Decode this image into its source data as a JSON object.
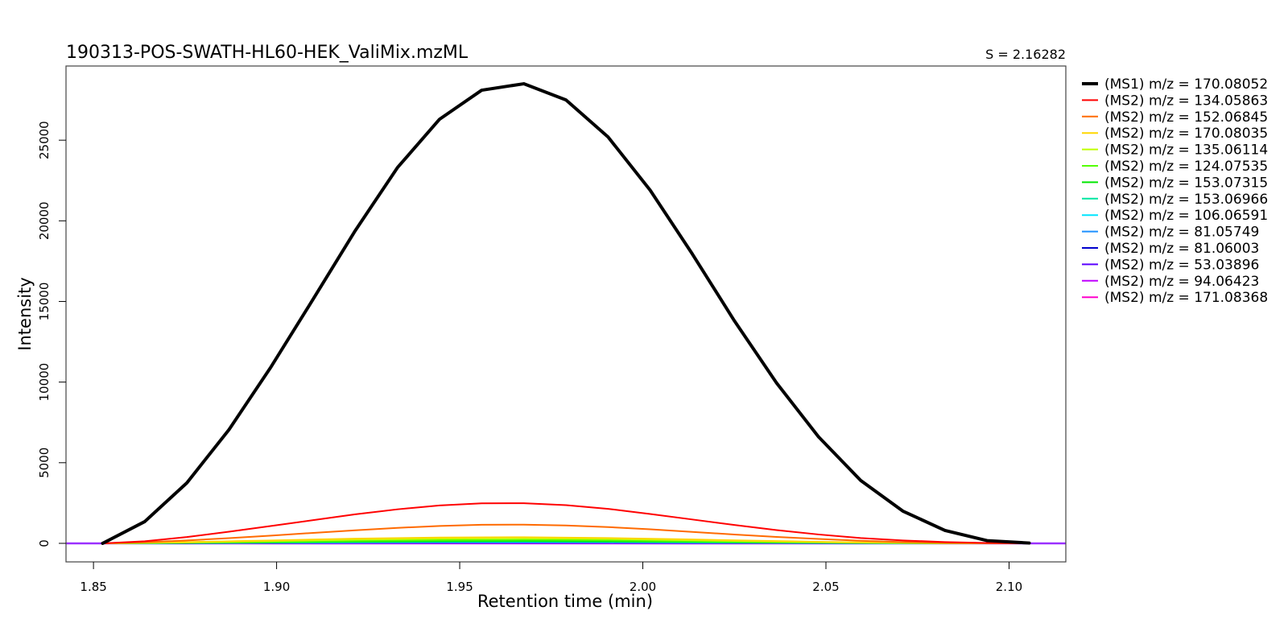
{
  "chart_data": {
    "type": "line",
    "title": "190313-POS-SWATH-HL60-HEK_ValiMix.mzML",
    "subtitle": "S = 2.16282",
    "xlabel": "Retention time (min)",
    "ylabel": "Intensity",
    "xlim": [
      1.8425,
      2.1155
    ],
    "ylim": [
      -1150,
      29600
    ],
    "x_ticks": [
      1.85,
      1.9,
      1.95,
      2.0,
      2.05,
      2.1
    ],
    "x_tick_labels": [
      "1.85",
      "1.90",
      "1.95",
      "2.00",
      "2.05",
      "2.10"
    ],
    "y_ticks": [
      0,
      5000,
      10000,
      15000,
      20000,
      25000
    ],
    "y_tick_labels": [
      "0",
      "5000",
      "10000",
      "15000",
      "20000",
      "25000"
    ],
    "grid": false,
    "legend_position": "right",
    "baseline": {
      "y": 0,
      "color": "#9b30ff"
    },
    "series": [
      {
        "name": "(MS1) m/z = 170.08052",
        "color": "#000000",
        "width": 4,
        "x": [
          1.8525,
          1.864,
          1.8755,
          1.887,
          1.8985,
          1.91,
          1.9215,
          1.933,
          1.9445,
          1.956,
          1.9675,
          1.979,
          1.9905,
          2.002,
          2.0135,
          2.025,
          2.0365,
          2.048,
          2.0595,
          2.071,
          2.0825,
          2.094,
          2.1055
        ],
        "y": [
          0,
          1350,
          3750,
          7050,
          10950,
          15150,
          19400,
          23300,
          26300,
          28100,
          28500,
          27500,
          25200,
          21900,
          17950,
          13800,
          9950,
          6600,
          3900,
          2000,
          800,
          170,
          20
        ]
      },
      {
        "name": "(MS2) m/z = 134.05863",
        "color": "#ff0000",
        "width": 2,
        "x": [
          1.8525,
          1.864,
          1.8755,
          1.887,
          1.8985,
          1.91,
          1.9215,
          1.933,
          1.9445,
          1.956,
          1.9675,
          1.979,
          1.9905,
          2.002,
          2.0135,
          2.025,
          2.0365,
          2.048,
          2.0595,
          2.071,
          2.0825,
          2.094,
          2.1055
        ],
        "y": [
          0,
          130,
          390,
          720,
          1080,
          1440,
          1800,
          2110,
          2350,
          2480,
          2490,
          2370,
          2140,
          1820,
          1480,
          1140,
          820,
          550,
          330,
          180,
          80,
          20,
          0
        ]
      },
      {
        "name": "(MS2) m/z = 152.06845",
        "color": "#ff6a00",
        "width": 2,
        "x": [
          1.8525,
          1.864,
          1.8755,
          1.887,
          1.8985,
          1.91,
          1.9215,
          1.933,
          1.9445,
          1.956,
          1.9675,
          1.979,
          1.9905,
          2.002,
          2.0135,
          2.025,
          2.0365,
          2.048,
          2.0595,
          2.071,
          2.0825,
          2.094,
          2.1055
        ],
        "y": [
          0,
          70,
          180,
          320,
          480,
          650,
          810,
          960,
          1080,
          1150,
          1160,
          1110,
          1010,
          870,
          710,
          550,
          400,
          270,
          160,
          80,
          30,
          10,
          0
        ]
      },
      {
        "name": "(MS2) m/z = 170.08035",
        "color": "#ffd700",
        "width": 2,
        "x": [
          1.8525,
          1.8755,
          1.8985,
          1.9215,
          1.9445,
          1.9675,
          1.9905,
          2.0135,
          2.0365,
          2.0595,
          2.0825,
          2.1055
        ],
        "y": [
          0,
          80,
          180,
          290,
          360,
          380,
          330,
          240,
          140,
          60,
          15,
          0
        ]
      },
      {
        "name": "(MS2) m/z = 135.06114",
        "color": "#bfff00",
        "width": 2,
        "x": [
          1.8525,
          1.8755,
          1.8985,
          1.9215,
          1.9445,
          1.9675,
          1.9905,
          2.0135,
          2.0365,
          2.0595,
          2.0825,
          2.1055
        ],
        "y": [
          0,
          60,
          140,
          230,
          290,
          310,
          270,
          190,
          110,
          50,
          12,
          0
        ]
      },
      {
        "name": "(MS2) m/z = 124.07535",
        "color": "#55ff00",
        "width": 2,
        "x": [
          1.8525,
          1.8755,
          1.8985,
          1.9215,
          1.9445,
          1.9675,
          1.9905,
          2.0135,
          2.0365,
          2.0595,
          2.0825,
          2.1055
        ],
        "y": [
          0,
          45,
          100,
          160,
          200,
          215,
          190,
          135,
          80,
          35,
          10,
          0
        ]
      },
      {
        "name": "(MS2) m/z = 153.07315",
        "color": "#00e600",
        "width": 2,
        "x": [
          1.8525,
          1.8755,
          1.8985,
          1.9215,
          1.9445,
          1.9675,
          1.9905,
          2.0135,
          2.0365,
          2.0595,
          2.0825,
          2.1055
        ],
        "y": [
          0,
          30,
          70,
          110,
          140,
          150,
          130,
          95,
          55,
          25,
          6,
          0
        ]
      },
      {
        "name": "(MS2) m/z = 153.06966",
        "color": "#00e6a0",
        "width": 2,
        "x": [
          1.8525,
          1.8755,
          1.8985,
          1.9215,
          1.9445,
          1.9675,
          1.9905,
          2.0135,
          2.0365,
          2.0595,
          2.0825,
          2.1055
        ],
        "y": [
          0,
          25,
          55,
          90,
          110,
          120,
          105,
          75,
          45,
          20,
          5,
          0
        ]
      },
      {
        "name": "(MS2) m/z = 106.06591",
        "color": "#00e5ff",
        "width": 2,
        "x": [
          1.8525,
          1.8755,
          1.8985,
          1.9215,
          1.9445,
          1.9675,
          1.9905,
          2.0135,
          2.0365,
          2.0595,
          2.0825,
          2.1055
        ],
        "y": [
          0,
          20,
          45,
          70,
          90,
          95,
          85,
          60,
          35,
          15,
          4,
          0
        ]
      },
      {
        "name": "(MS2) m/z = 81.05749",
        "color": "#1e90ff",
        "width": 2,
        "x": [
          1.8525,
          1.8755,
          1.8985,
          1.9215,
          1.9445,
          1.9675,
          1.9905,
          2.0135,
          2.0365,
          2.0595,
          2.0825,
          2.1055
        ],
        "y": [
          0,
          15,
          35,
          55,
          70,
          75,
          65,
          45,
          28,
          12,
          3,
          0
        ]
      },
      {
        "name": "(MS2) m/z = 81.06003",
        "color": "#0000cd",
        "width": 2,
        "x": [
          1.8525,
          1.8755,
          1.8985,
          1.9215,
          1.9445,
          1.9675,
          1.9905,
          2.0135,
          2.0365,
          2.0595,
          2.0825,
          2.1055
        ],
        "y": [
          0,
          12,
          28,
          45,
          55,
          60,
          52,
          38,
          22,
          10,
          2,
          0
        ]
      },
      {
        "name": "(MS2) m/z = 53.03896",
        "color": "#5a00ff",
        "width": 2,
        "x": [
          1.8525,
          1.8755,
          1.8985,
          1.9215,
          1.9445,
          1.9675,
          1.9905,
          2.0135,
          2.0365,
          2.0595,
          2.0825,
          2.1055
        ],
        "y": [
          0,
          10,
          22,
          35,
          45,
          48,
          42,
          30,
          18,
          8,
          2,
          0
        ]
      },
      {
        "name": "(MS2) m/z = 94.06423",
        "color": "#c000ff",
        "width": 2,
        "x": [
          1.8525,
          1.8755,
          1.8985,
          1.9215,
          1.9445,
          1.9675,
          1.9905,
          2.0135,
          2.0365,
          2.0595,
          2.0825,
          2.1055
        ],
        "y": [
          0,
          8,
          18,
          28,
          36,
          38,
          34,
          24,
          14,
          6,
          1,
          0
        ]
      },
      {
        "name": "(MS2) m/z = 171.08368",
        "color": "#ff00cc",
        "width": 2,
        "x": [
          1.8525,
          1.8755,
          1.8985,
          1.9215,
          1.9445,
          1.9675,
          1.9905,
          2.0135,
          2.0365,
          2.0595,
          2.0825,
          2.1055
        ],
        "y": [
          0,
          6,
          14,
          22,
          28,
          30,
          26,
          18,
          10,
          4,
          1,
          0
        ]
      }
    ]
  }
}
